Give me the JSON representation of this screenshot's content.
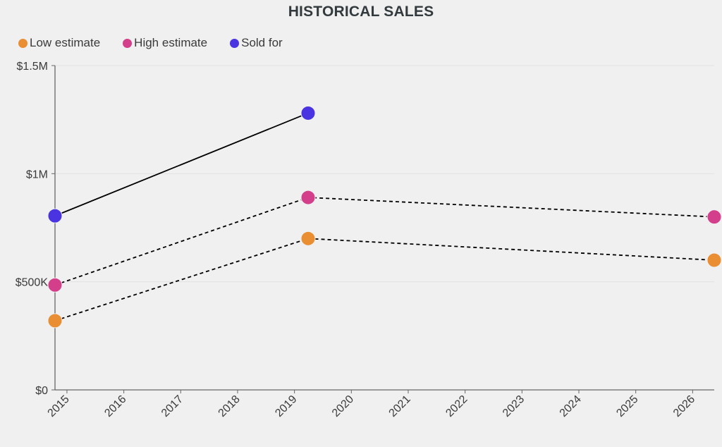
{
  "chart_data": {
    "type": "line",
    "title": "HISTORICAL SALES",
    "xlabel": "",
    "ylabel": "",
    "xlim": [
      2014.79,
      2026.38
    ],
    "ylim": [
      0,
      1500000
    ],
    "grid": true,
    "legend_position": "top-left",
    "x_ticks": [
      "2015",
      "2016",
      "2017",
      "2018",
      "2019",
      "2020",
      "2021",
      "2022",
      "2023",
      "2024",
      "2025",
      "2026"
    ],
    "y_ticks": [
      {
        "value": 0,
        "label": "$0"
      },
      {
        "value": 500000,
        "label": "$500K"
      },
      {
        "value": 1000000,
        "label": "$1M"
      },
      {
        "value": 1500000,
        "label": "$1.5M"
      }
    ],
    "series": [
      {
        "name": "Low estimate",
        "color": "#e98e33",
        "dashed": true,
        "x": [
          2014.79,
          2019.24,
          2026.38
        ],
        "values": [
          320000,
          700000,
          600000
        ]
      },
      {
        "name": "High estimate",
        "color": "#d33f8a",
        "dashed": true,
        "x": [
          2014.79,
          2019.24,
          2026.38
        ],
        "values": [
          485000,
          890000,
          800000
        ]
      },
      {
        "name": "Sold for",
        "color": "#4a33e0",
        "dashed": false,
        "x": [
          2014.79,
          2019.24
        ],
        "values": [
          805000,
          1280000
        ]
      }
    ]
  }
}
